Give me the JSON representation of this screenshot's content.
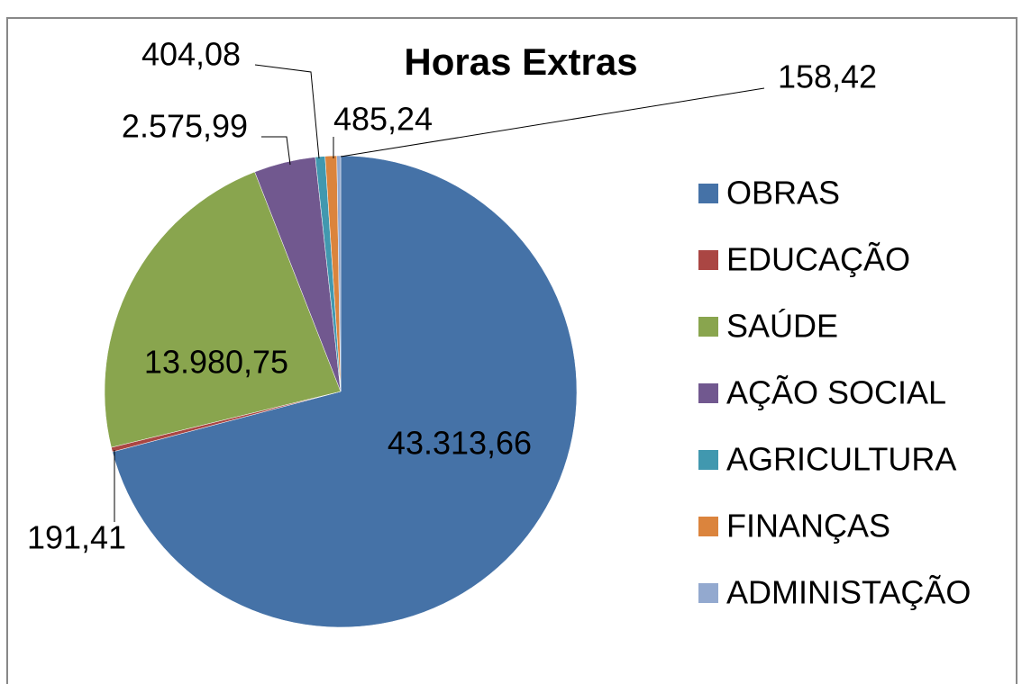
{
  "chart_data": {
    "type": "pie",
    "title": "Horas Extras",
    "categories": [
      "OBRAS",
      "EDUCAÇÃO",
      "SAÚDE",
      "AÇÃO SOCIAL",
      "AGRICULTURA",
      "FINANÇAS",
      "ADMINISTAÇÃO"
    ],
    "values": [
      43313.66,
      191.41,
      13980.75,
      2575.99,
      404.08,
      485.24,
      158.42
    ],
    "value_labels": [
      "43.313,66",
      "191,41",
      "13.980,75",
      "2.575,99",
      "404,08",
      "485,24",
      "158,42"
    ],
    "colors": [
      "#4572a7",
      "#aa4643",
      "#89a54e",
      "#71588f",
      "#4198af",
      "#db843d",
      "#93a9cf"
    ],
    "legend": "right"
  }
}
